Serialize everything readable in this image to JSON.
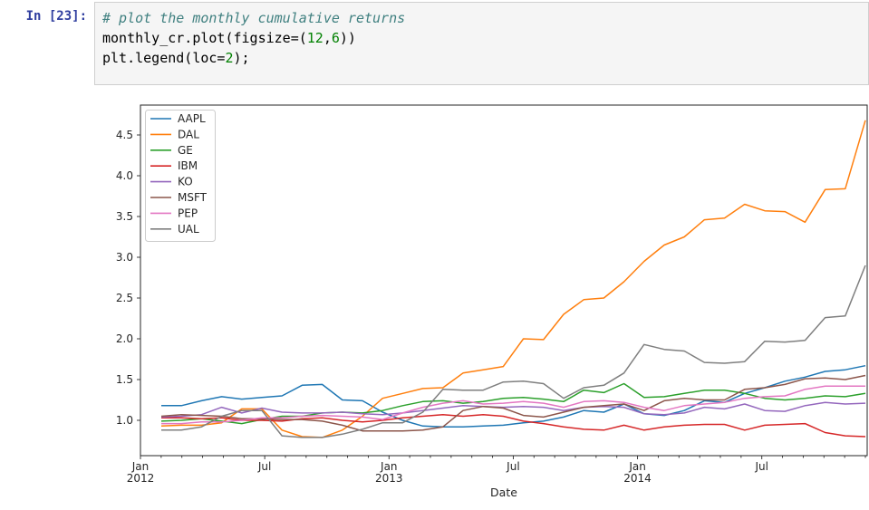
{
  "notebook": {
    "cell": {
      "prompt": "In [23]:",
      "code_lines": [
        {
          "segments": [
            {
              "t": "# plot the monthly cumulative returns",
              "c": "comment"
            }
          ]
        },
        {
          "segments": [
            {
              "t": "monthly_cr.plot(figsize=(",
              "c": "plain"
            },
            {
              "t": "12",
              "c": "number"
            },
            {
              "t": ",",
              "c": "plain"
            },
            {
              "t": "6",
              "c": "number"
            },
            {
              "t": "))",
              "c": "plain"
            }
          ]
        },
        {
          "segments": [
            {
              "t": "plt.legend(loc=",
              "c": "plain"
            },
            {
              "t": "2",
              "c": "number"
            },
            {
              "t": ");",
              "c": "plain"
            }
          ]
        }
      ]
    }
  },
  "colors": {
    "prompt": "#303F9F",
    "comment": "#408080",
    "number": "#008000",
    "code": "#000000",
    "cell_bg": "#f5f5f5",
    "cell_border": "#cfcfcf",
    "axis": "#262626",
    "legend_border": "#cccccc"
  },
  "chart_data": {
    "type": "line",
    "title": "",
    "xlabel": "Date",
    "ylabel": "",
    "grid": false,
    "legend_position": "upper left",
    "legend_entries": [
      "AAPL",
      "DAL",
      "GE",
      "IBM",
      "KO",
      "MSFT",
      "PEP",
      "UAL"
    ],
    "ylim": [
      0.57,
      4.87
    ],
    "y_ticks": [
      1.0,
      1.5,
      2.0,
      2.5,
      3.0,
      3.5,
      4.0,
      4.5
    ],
    "y_tick_labels": [
      "1.0",
      "1.5",
      "2.0",
      "2.5",
      "3.0",
      "3.5",
      "4.0",
      "4.5"
    ],
    "x_ticks": [
      {
        "month_offset": 0,
        "label": "Jan",
        "sublabel": "2012"
      },
      {
        "month_offset": 6,
        "label": "Jul",
        "sublabel": ""
      },
      {
        "month_offset": 12,
        "label": "Jan",
        "sublabel": "2013"
      },
      {
        "month_offset": 18,
        "label": "Jul",
        "sublabel": ""
      },
      {
        "month_offset": 24,
        "label": "Jan",
        "sublabel": "2014"
      },
      {
        "month_offset": 30,
        "label": "Jul",
        "sublabel": ""
      }
    ],
    "minor_ticks_monthly": true,
    "n_months": 36,
    "months": [
      "2012-01",
      "2012-02",
      "2012-03",
      "2012-04",
      "2012-05",
      "2012-06",
      "2012-07",
      "2012-08",
      "2012-09",
      "2012-10",
      "2012-11",
      "2012-12",
      "2013-01",
      "2013-02",
      "2013-03",
      "2013-04",
      "2013-05",
      "2013-06",
      "2013-07",
      "2013-08",
      "2013-09",
      "2013-10",
      "2013-11",
      "2013-12",
      "2014-01",
      "2014-02",
      "2014-03",
      "2014-04",
      "2014-05",
      "2014-06",
      "2014-07",
      "2014-08",
      "2014-09",
      "2014-10",
      "2014-11",
      "2014-12"
    ],
    "series": [
      {
        "name": "AAPL",
        "color": "#1f77b4",
        "values": [
          1.18,
          1.18,
          1.24,
          1.29,
          1.26,
          1.28,
          1.3,
          1.43,
          1.44,
          1.25,
          1.24,
          1.1,
          1.0,
          0.93,
          0.92,
          0.92,
          0.93,
          0.94,
          0.97,
          0.99,
          1.04,
          1.12,
          1.1,
          1.2,
          1.08,
          1.06,
          1.12,
          1.24,
          1.22,
          1.33,
          1.4,
          1.48,
          1.53,
          1.6,
          1.62,
          1.67
        ]
      },
      {
        "name": "DAL",
        "color": "#ff7f0e",
        "values": [
          0.93,
          0.94,
          0.94,
          0.97,
          1.14,
          1.14,
          0.88,
          0.8,
          0.79,
          0.88,
          1.05,
          1.27,
          1.33,
          1.39,
          1.4,
          1.58,
          1.62,
          1.66,
          2.0,
          1.99,
          2.3,
          2.48,
          2.5,
          2.7,
          2.95,
          3.15,
          3.25,
          3.46,
          3.48,
          3.65,
          3.57,
          3.56,
          3.43,
          3.83,
          3.84,
          4.68
        ]
      },
      {
        "name": "GE",
        "color": "#2ca02c",
        "values": [
          0.99,
          1.0,
          1.02,
          0.99,
          0.96,
          1.01,
          1.05,
          1.05,
          1.09,
          1.1,
          1.09,
          1.12,
          1.18,
          1.23,
          1.24,
          1.21,
          1.23,
          1.27,
          1.28,
          1.26,
          1.23,
          1.37,
          1.34,
          1.45,
          1.28,
          1.29,
          1.33,
          1.37,
          1.37,
          1.33,
          1.27,
          1.25,
          1.27,
          1.3,
          1.29,
          1.33
        ]
      },
      {
        "name": "IBM",
        "color": "#d62728",
        "values": [
          1.03,
          1.03,
          1.02,
          1.03,
          1.0,
          1.0,
          0.99,
          1.02,
          1.03,
          1.0,
          0.98,
          1.0,
          1.03,
          1.05,
          1.07,
          1.05,
          1.07,
          1.05,
          0.99,
          0.96,
          0.92,
          0.89,
          0.88,
          0.94,
          0.88,
          0.92,
          0.94,
          0.95,
          0.95,
          0.88,
          0.94,
          0.95,
          0.96,
          0.85,
          0.81,
          0.8
        ]
      },
      {
        "name": "KO",
        "color": "#9467bd",
        "values": [
          1.04,
          1.05,
          1.07,
          1.16,
          1.09,
          1.15,
          1.1,
          1.09,
          1.09,
          1.1,
          1.08,
          1.07,
          1.09,
          1.12,
          1.15,
          1.18,
          1.17,
          1.16,
          1.17,
          1.16,
          1.12,
          1.16,
          1.17,
          1.16,
          1.08,
          1.07,
          1.09,
          1.16,
          1.14,
          1.2,
          1.12,
          1.11,
          1.18,
          1.22,
          1.2,
          1.21
        ]
      },
      {
        "name": "MSFT",
        "color": "#8c564b",
        "values": [
          1.05,
          1.07,
          1.06,
          1.05,
          1.02,
          1.02,
          1.01,
          1.01,
          0.99,
          0.94,
          0.87,
          0.87,
          0.87,
          0.88,
          0.92,
          1.12,
          1.17,
          1.15,
          1.06,
          1.04,
          1.1,
          1.16,
          1.18,
          1.2,
          1.12,
          1.24,
          1.27,
          1.25,
          1.25,
          1.38,
          1.4,
          1.44,
          1.51,
          1.52,
          1.5,
          1.55
        ]
      },
      {
        "name": "PEP",
        "color": "#e377c2",
        "values": [
          0.96,
          0.96,
          0.98,
          0.98,
          1.0,
          1.03,
          1.03,
          1.05,
          1.06,
          1.05,
          1.04,
          1.01,
          1.09,
          1.16,
          1.21,
          1.24,
          1.2,
          1.21,
          1.23,
          1.21,
          1.16,
          1.23,
          1.24,
          1.22,
          1.16,
          1.12,
          1.18,
          1.2,
          1.22,
          1.27,
          1.29,
          1.3,
          1.38,
          1.42,
          1.42,
          1.42
        ]
      },
      {
        "name": "UAL",
        "color": "#7f7f7f",
        "values": [
          0.88,
          0.88,
          0.92,
          1.05,
          1.12,
          1.12,
          0.81,
          0.79,
          0.79,
          0.83,
          0.89,
          0.97,
          0.97,
          1.1,
          1.38,
          1.37,
          1.37,
          1.47,
          1.48,
          1.45,
          1.27,
          1.4,
          1.43,
          1.58,
          1.93,
          1.87,
          1.85,
          1.71,
          1.7,
          1.72,
          1.97,
          1.96,
          1.98,
          2.26,
          2.28,
          2.9
        ]
      }
    ]
  }
}
